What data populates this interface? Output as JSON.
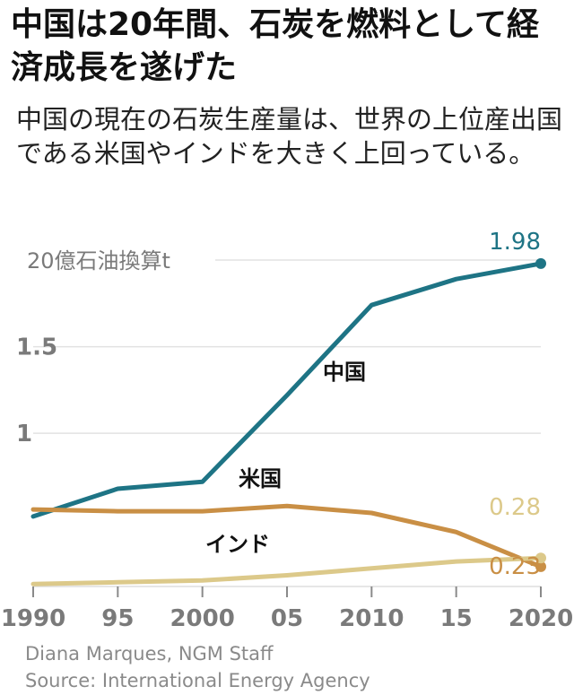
{
  "title": "中国は20年間、石炭を燃料として経済成長を遂げた",
  "subtitle": "中国の現在の石炭生産量は、世界の上位産出国である米国やインドを大きく上回っている。",
  "credits": {
    "author": "Diana Marques, NGM Staff",
    "source": "Source: International Energy Agency"
  },
  "chart_data": {
    "type": "line",
    "unit_label": "20億石油換算t",
    "x": [
      1990,
      1995,
      2000,
      2005,
      2010,
      2015,
      2020
    ],
    "x_tick_labels": [
      "1990",
      "95",
      "2000",
      "05",
      "2010",
      "15",
      "2020"
    ],
    "ylim": [
      0.1,
      2.0
    ],
    "y_ticks": [
      {
        "value": 1,
        "label": "1"
      },
      {
        "value": 1.5,
        "label": "1.5"
      }
    ],
    "grid": true,
    "series": [
      {
        "name": "中国",
        "color": "#1e7485",
        "values": [
          0.52,
          0.68,
          0.72,
          1.22,
          1.74,
          1.89,
          1.98
        ],
        "end_label": "1.98"
      },
      {
        "name": "米国",
        "color": "#c98f45",
        "values": [
          0.56,
          0.55,
          0.55,
          0.58,
          0.54,
          0.43,
          0.23
        ],
        "end_label": "0.23"
      },
      {
        "name": "インド",
        "color": "#dcc98a",
        "values": [
          0.13,
          0.14,
          0.15,
          0.18,
          0.22,
          0.26,
          0.28
        ],
        "end_label": "0.28"
      }
    ]
  }
}
